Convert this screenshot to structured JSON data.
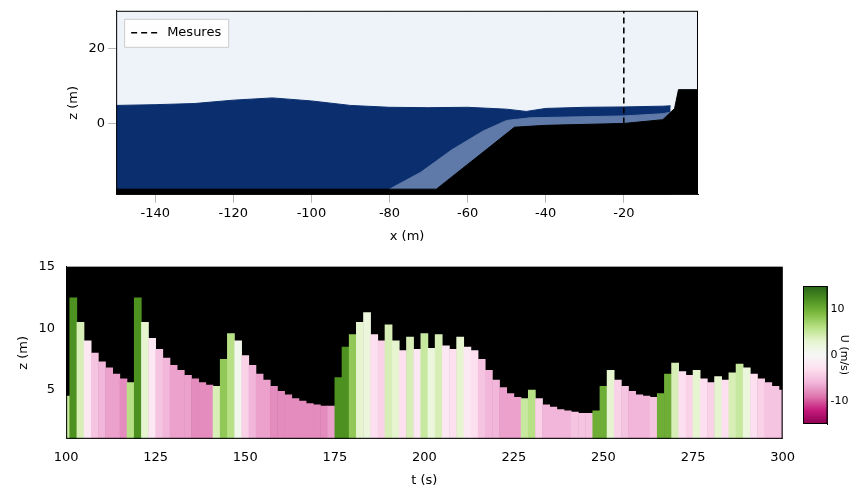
{
  "chart_data": [
    {
      "type": "line",
      "xlabel": "x (m)",
      "ylabel": "z (m)",
      "xlim": [
        -150,
        -1
      ],
      "ylim": [
        -19,
        30
      ],
      "xticks": [
        -140,
        -120,
        -100,
        -80,
        -60,
        -40,
        -20
      ],
      "yticks": [
        0,
        20
      ],
      "grid": true,
      "legend": "upper left",
      "series": [
        {
          "name": "Mesures",
          "type": "line",
          "color": "#000000",
          "line_style": "dashed",
          "x": [
            -20,
            -20
          ],
          "values": [
            0,
            30
          ]
        },
        {
          "type": "area",
          "color": "#000000",
          "x": [
            -150,
            -68,
            -60,
            -55,
            -48,
            -40,
            -20,
            -10,
            -7,
            -6,
            -1
          ],
          "values": [
            -17.5,
            -17.5,
            -10.9,
            -6.8,
            -1,
            -0.5,
            0,
            1,
            4,
            9,
            9
          ]
        },
        {
          "type": "area",
          "color": "#5f7aa8",
          "x": [
            -80,
            -72,
            -64,
            -56,
            -50,
            -44,
            -30,
            -20,
            -10,
            -8
          ],
          "values": [
            -17.5,
            -13,
            -7,
            -2,
            0.8,
            1.5,
            1.8,
            2,
            2.6,
            3
          ]
        },
        {
          "type": "area",
          "color": "#0b2f6e",
          "x": [
            -150,
            -140,
            -130,
            -120,
            -110,
            -100,
            -90,
            -80,
            -70,
            -60,
            -50,
            -45,
            -40,
            -30,
            -20,
            -10,
            -8
          ],
          "values": [
            4.8,
            5,
            5.3,
            6.2,
            6.8,
            6,
            4.8,
            4.3,
            4.2,
            4.3,
            3.8,
            3.2,
            4,
            4.3,
            4.4,
            4.6,
            4.7
          ]
        }
      ]
    },
    {
      "type": "bar",
      "xlabel": "t (s)",
      "ylabel": "z (m)",
      "xlim": [
        100,
        300
      ],
      "ylim": [
        1,
        15
      ],
      "xticks": [
        100,
        125,
        150,
        175,
        200,
        225,
        250,
        275,
        300
      ],
      "yticks": [
        5,
        10,
        15
      ],
      "grid": false,
      "x": [
        100,
        102,
        104,
        106,
        108,
        110,
        112,
        114,
        116,
        118,
        120,
        122,
        124,
        126,
        128,
        130,
        132,
        134,
        136,
        138,
        140,
        142,
        144,
        146,
        148,
        150,
        152,
        154,
        156,
        158,
        160,
        162,
        164,
        166,
        168,
        170,
        172,
        174,
        176,
        178,
        180,
        182,
        184,
        186,
        188,
        190,
        192,
        194,
        196,
        198,
        200,
        202,
        204,
        206,
        208,
        210,
        212,
        214,
        216,
        218,
        220,
        222,
        224,
        226,
        228,
        230,
        232,
        234,
        236,
        238,
        240,
        242,
        244,
        246,
        248,
        250,
        252,
        254,
        256,
        258,
        260,
        262,
        264,
        266,
        268,
        270,
        272,
        274,
        276,
        278,
        280,
        282,
        284,
        286,
        288,
        290,
        292,
        294,
        296,
        298,
        300
      ],
      "series": [
        {
          "values": [
            4.5,
            12.5,
            10.5,
            9,
            8,
            7.3,
            6.8,
            6.3,
            5.9,
            5.6,
            12.5,
            10.5,
            9.2,
            8.3,
            7.6,
            7,
            6.6,
            6.2,
            5.9,
            5.6,
            5.4,
            5.3,
            7.5,
            9.6,
            9,
            7.8,
            7,
            6.3,
            5.8,
            5.3,
            4.9,
            4.6,
            4.3,
            4.1,
            3.9,
            3.8,
            3.7,
            3.7,
            6,
            8.5,
            9.5,
            10.5,
            11.3,
            9.5,
            9,
            10.3,
            9,
            8.2,
            9.3,
            8.3,
            9.6,
            8.4,
            9.5,
            8.6,
            8.3,
            9.3,
            8.5,
            8.2,
            7.5,
            6.6,
            5.8,
            5.2,
            4.7,
            4.4,
            4.3,
            5,
            4.3,
            3.8,
            3.6,
            3.4,
            3.3,
            3.2,
            3.1,
            3.1,
            3.3,
            5.3,
            6.6,
            5.8,
            5.3,
            4.9,
            4.6,
            4.5,
            4.4,
            4.7,
            6.3,
            7.2,
            6.5,
            6.2,
            6.6,
            5.9,
            5.6,
            6.1,
            5.8,
            6.4,
            7.1,
            6.8,
            6.3,
            5.9,
            5.6,
            5.3,
            5
          ],
          "U": [
            5,
            12,
            4,
            -2,
            -5,
            -6,
            -7,
            -7,
            -8,
            6,
            12,
            3,
            -2,
            -5,
            -6,
            -7,
            -7,
            -7,
            -8,
            -8,
            -8,
            4,
            8,
            6,
            1,
            -4,
            -6,
            -7,
            -7,
            -8,
            -8,
            -8,
            -8,
            -8,
            -8,
            -8,
            -8,
            -7,
            12,
            12,
            8,
            3,
            2,
            -3,
            -4,
            4,
            3,
            -3,
            4,
            -2,
            5,
            2,
            4,
            -2,
            -3,
            3,
            -2,
            -3,
            -5,
            -6,
            -6,
            -7,
            -7,
            -7,
            5,
            6,
            -4,
            -6,
            -6,
            -6,
            -6,
            -5,
            -5,
            -5,
            10,
            10,
            3,
            -4,
            -5,
            -6,
            -6,
            -6,
            -5,
            10,
            10,
            4,
            -3,
            -4,
            3,
            -3,
            -4,
            3,
            -3,
            4,
            5,
            2,
            -3,
            -4,
            -5,
            -5,
            -5
          ]
        }
      ],
      "colorbar": {
        "label": "U (m/s)",
        "lim": [
          -15,
          15
        ],
        "ticks": [
          -10,
          0,
          10
        ]
      }
    }
  ]
}
